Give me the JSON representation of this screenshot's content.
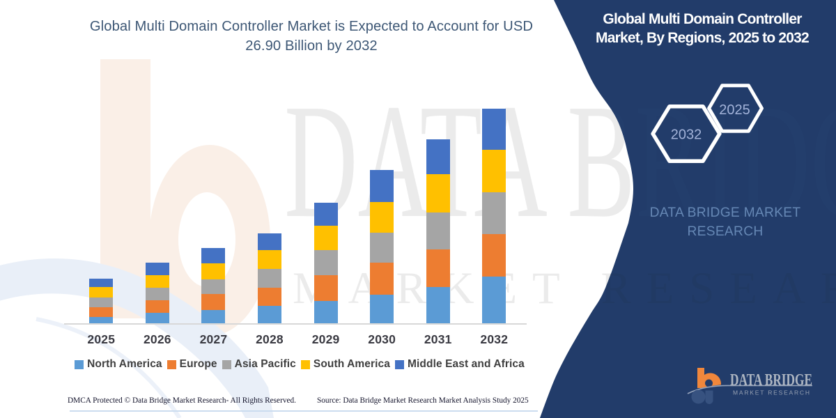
{
  "title": {
    "line1": "Global Multi Domain Controller Market is Expected to Account for USD",
    "line2": "26.90 Billion by 2032"
  },
  "panel": {
    "title_line1": "Global Multi Domain Controller",
    "title_line2": "Market, By Regions, 2025 to 2032",
    "hexagon_left_label": "2032",
    "hexagon_right_label": "2025",
    "brand_line1": "DATA BRIDGE MARKET",
    "brand_line2": "RESEARCH",
    "background_color": "#223C6A"
  },
  "watermark": {
    "line1": "DATA BRIDGE",
    "line2": "MARKET RESEARCH"
  },
  "logo": {
    "wordmark": "DATA BRIDGE",
    "tagline": "MARKET RESEARCH",
    "icon_color": "#F0873C"
  },
  "footer": {
    "left": "DMCA Protected © Data Bridge Market Research- All Rights Reserved.",
    "right": "Source: Data Bridge Market Research Market Analysis Study 2025"
  },
  "chart_data": {
    "type": "bar",
    "stacked": true,
    "title": "Global Multi Domain Controller Market is Expected to Account for USD 26.90 Billion by 2032",
    "unit": "USD Billion",
    "categories": [
      "2025",
      "2026",
      "2027",
      "2028",
      "2029",
      "2030",
      "2031",
      "2032"
    ],
    "series": [
      {
        "name": "North America",
        "color": "#5B9BD5",
        "values": [
          0.89,
          1.37,
          1.7,
          2.26,
          2.91,
          3.62,
          4.6,
          5.96
        ]
      },
      {
        "name": "Europe",
        "color": "#ED7D31",
        "values": [
          1.24,
          1.56,
          2.0,
          2.26,
          3.21,
          4.01,
          4.69,
          5.25
        ]
      },
      {
        "name": "Asia Pacific",
        "color": "#A5A5A5",
        "values": [
          1.22,
          1.59,
          1.91,
          2.34,
          3.08,
          3.77,
          4.64,
          5.25
        ]
      },
      {
        "name": "South America",
        "color": "#FFC000",
        "values": [
          1.22,
          1.6,
          2.0,
          2.34,
          3.08,
          3.85,
          4.77,
          5.26
        ]
      },
      {
        "name": "Middle East and Africa",
        "color": "#4472C4",
        "values": [
          1.1,
          1.5,
          1.91,
          2.08,
          2.86,
          3.99,
          4.34,
          5.18
        ]
      }
    ],
    "totals": [
      5.67,
      7.62,
      9.52,
      11.28,
      15.14,
      19.24,
      23.04,
      26.9
    ],
    "value_axis_visible": false,
    "legend_position": "bottom",
    "grid": false
  }
}
